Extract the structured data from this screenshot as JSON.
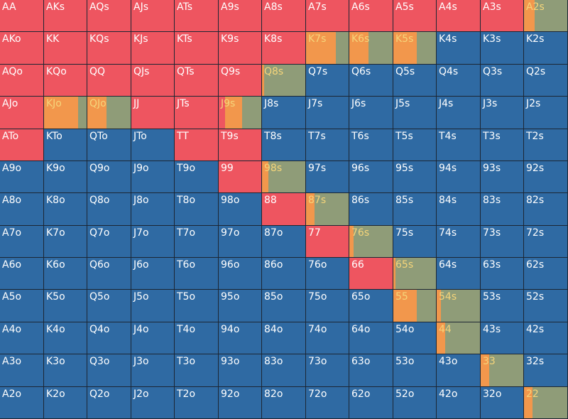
{
  "colors": {
    "raise": "#ee5560",
    "fold": "#2f6aa3",
    "call": "#f2974c",
    "check": "#8f9c78",
    "mixed_label": "#f5d57a",
    "label": "#ffffff"
  },
  "rows": [
    [
      "AA",
      "AKs",
      "AQs",
      "AJs",
      "ATs",
      "A9s",
      "A8s",
      "A7s",
      "A6s",
      "A5s",
      "A4s",
      "A3s",
      "A2s"
    ],
    [
      "AKo",
      "KK",
      "KQs",
      "KJs",
      "KTs",
      "K9s",
      "K8s",
      "K7s",
      "K6s",
      "K5s",
      "K4s",
      "K3s",
      "K2s"
    ],
    [
      "AQo",
      "KQo",
      "QQ",
      "QJs",
      "QTs",
      "Q9s",
      "Q8s",
      "Q7s",
      "Q6s",
      "Q5s",
      "Q4s",
      "Q3s",
      "Q2s"
    ],
    [
      "AJo",
      "KJo",
      "QJo",
      "JJ",
      "JTs",
      "J9s",
      "J8s",
      "J7s",
      "J6s",
      "J5s",
      "J4s",
      "J3s",
      "J2s"
    ],
    [
      "ATo",
      "KTo",
      "QTo",
      "JTo",
      "TT",
      "T9s",
      "T8s",
      "T7s",
      "T6s",
      "T5s",
      "T4s",
      "T3s",
      "T2s"
    ],
    [
      "A9o",
      "K9o",
      "Q9o",
      "J9o",
      "T9o",
      "99",
      "98s",
      "97s",
      "96s",
      "95s",
      "94s",
      "93s",
      "92s"
    ],
    [
      "A8o",
      "K8o",
      "Q8o",
      "J8o",
      "T8o",
      "98o",
      "88",
      "87s",
      "86s",
      "85s",
      "84s",
      "83s",
      "82s"
    ],
    [
      "A7o",
      "K7o",
      "Q7o",
      "J7o",
      "T7o",
      "97o",
      "87o",
      "77",
      "76s",
      "75s",
      "74s",
      "73s",
      "72s"
    ],
    [
      "A6o",
      "K6o",
      "Q6o",
      "J6o",
      "T6o",
      "96o",
      "86o",
      "76o",
      "66",
      "65s",
      "64s",
      "63s",
      "62s"
    ],
    [
      "A5o",
      "K5o",
      "Q5o",
      "J5o",
      "T5o",
      "95o",
      "85o",
      "75o",
      "65o",
      "55",
      "54s",
      "53s",
      "52s"
    ],
    [
      "A4o",
      "K4o",
      "Q4o",
      "J4o",
      "T4o",
      "94o",
      "84o",
      "74o",
      "64o",
      "54o",
      "44",
      "43s",
      "42s"
    ],
    [
      "A3o",
      "K3o",
      "Q3o",
      "J3o",
      "T3o",
      "93o",
      "83o",
      "73o",
      "63o",
      "53o",
      "43o",
      "33",
      "32s"
    ],
    [
      "A2o",
      "K2o",
      "Q2o",
      "J2o",
      "T2o",
      "92o",
      "82o",
      "72o",
      "62o",
      "52o",
      "42o",
      "32o",
      "22"
    ]
  ],
  "raise_hands": [
    "AA",
    "AKs",
    "AQs",
    "AJs",
    "ATs",
    "A9s",
    "A8s",
    "A7s",
    "A6s",
    "A5s",
    "A4s",
    "A3s",
    "AKo",
    "KK",
    "KQs",
    "KJs",
    "KTs",
    "K9s",
    "K8s",
    "AQo",
    "KQo",
    "QQ",
    "QJs",
    "QTs",
    "Q9s",
    "AJo",
    "JJ",
    "JTs",
    "ATo",
    "TT",
    "T9s",
    "99",
    "88",
    "77",
    "66"
  ],
  "mixed_hands": {
    "A2s": {
      "raise": 0,
      "call": 0.25,
      "check": 0.75
    },
    "K7s": {
      "raise": 0,
      "call": 0.7,
      "check": 0.3
    },
    "K6s": {
      "raise": 0,
      "call": 0.45,
      "check": 0.55
    },
    "K5s": {
      "raise": 0,
      "call": 0.55,
      "check": 0.45
    },
    "Q8s": {
      "raise": 0,
      "call": 0.05,
      "check": 0.95
    },
    "KJo": {
      "raise": 0,
      "call": 0.8,
      "check": 0.2
    },
    "QJo": {
      "raise": 0,
      "call": 0.45,
      "check": 0.55
    },
    "J9s": {
      "raise": 0.15,
      "call": 0.4,
      "check": 0.45
    },
    "98s": {
      "raise": 0,
      "call": 0.15,
      "check": 0.85
    },
    "87s": {
      "raise": 0,
      "call": 0.2,
      "check": 0.8
    },
    "76s": {
      "raise": 0,
      "call": 0.1,
      "check": 0.9
    },
    "65s": {
      "raise": 0,
      "call": 0.05,
      "check": 0.95
    },
    "55": {
      "raise": 0,
      "call": 0.55,
      "check": 0.45
    },
    "54s": {
      "raise": 0,
      "call": 0.1,
      "check": 0.9
    },
    "44": {
      "raise": 0,
      "call": 0.2,
      "check": 0.8
    },
    "33": {
      "raise": 0,
      "call": 0.2,
      "check": 0.8
    },
    "22": {
      "raise": 0,
      "call": 0.2,
      "check": 0.8
    }
  }
}
